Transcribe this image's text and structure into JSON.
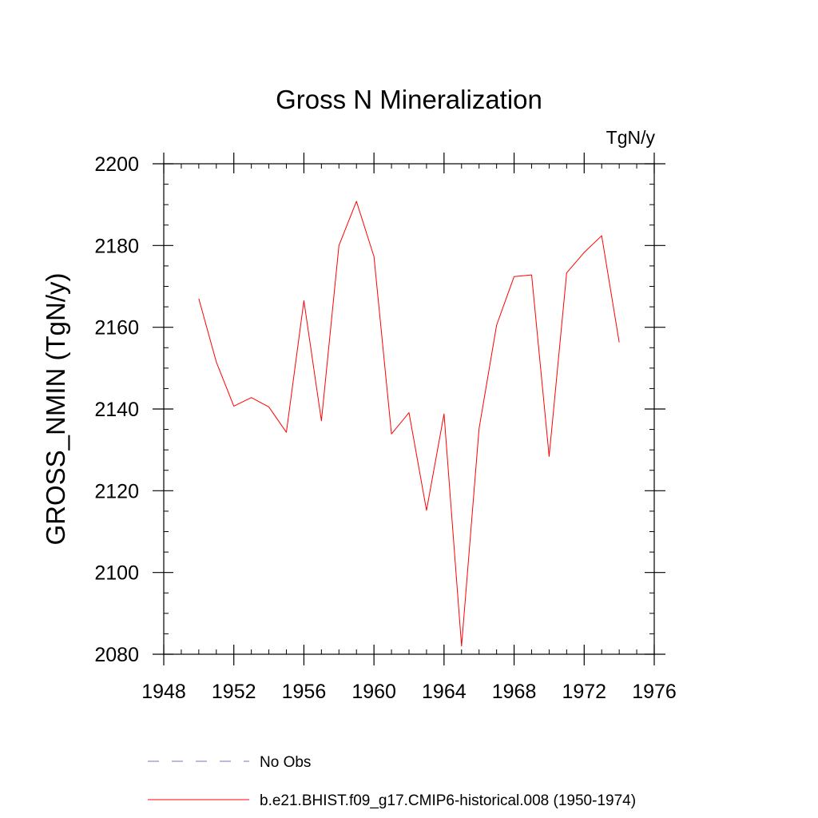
{
  "chart_data": {
    "type": "line",
    "title": "Gross N Mineralization",
    "units": "TgN/y",
    "xlabel": "",
    "ylabel": "GROSS_NMIN  (TgN/y)",
    "xlim": [
      1948,
      1976
    ],
    "ylim": [
      2080,
      2200
    ],
    "x_major_ticks": [
      1948,
      1952,
      1956,
      1960,
      1964,
      1968,
      1972,
      1976
    ],
    "x_minor_ticks": [
      1949,
      1950,
      1951,
      1953,
      1954,
      1955,
      1957,
      1958,
      1959,
      1961,
      1962,
      1963,
      1965,
      1966,
      1967,
      1969,
      1970,
      1971,
      1973,
      1974,
      1975
    ],
    "y_major_ticks": [
      2080,
      2100,
      2120,
      2140,
      2160,
      2180,
      2200
    ],
    "y_minor_ticks": [
      2085,
      2090,
      2095,
      2105,
      2110,
      2115,
      2125,
      2130,
      2135,
      2145,
      2150,
      2155,
      2165,
      2170,
      2175,
      2185,
      2190,
      2195
    ],
    "grid": false,
    "legend_position": "bottom",
    "series": [
      {
        "name": "No Obs",
        "color": "#7b6fc6",
        "dash": "dashed",
        "x": [],
        "y": []
      },
      {
        "name": "b.e21.BHIST.f09_g17.CMIP6-historical.008 (1950-1974)",
        "color": "#ff0000",
        "dash": "solid",
        "x": [
          1950,
          1951,
          1952,
          1953,
          1954,
          1955,
          1956,
          1957,
          1958,
          1959,
          1960,
          1961,
          1962,
          1963,
          1964,
          1965,
          1966,
          1967,
          1968,
          1969,
          1970,
          1971,
          1972,
          1973,
          1974
        ],
        "y": [
          2167.0,
          2151.5,
          2140.7,
          2142.8,
          2140.5,
          2134.3,
          2166.5,
          2137.1,
          2180.0,
          2190.8,
          2177.3,
          2133.9,
          2139.1,
          2115.2,
          2138.8,
          2082.0,
          2135.2,
          2160.5,
          2172.4,
          2172.8,
          2128.4,
          2173.3,
          2178.3,
          2182.4,
          2156.3
        ]
      }
    ]
  }
}
